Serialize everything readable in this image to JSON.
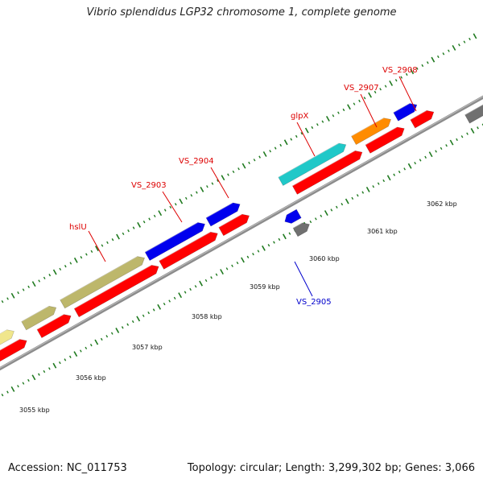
{
  "title": "Vibrio splendidus LGP32 chromosome 1, complete genome",
  "footer": {
    "accession": "Accession: NC_011753",
    "summary": "Topology: circular; Length: 3,299,302 bp; Genes: 3,066"
  },
  "scale": {
    "ticks": [
      "3055 kbp",
      "3056 kbp",
      "3057 kbp",
      "3058 kbp",
      "3059 kbp",
      "3060 kbp",
      "3061 kbp",
      "3062 kbp"
    ]
  },
  "colors": {
    "backbone": "#8c8c8c",
    "tick": "#1f7a1f",
    "cds": "#ff0000",
    "khaki": "#bdb76b",
    "yellow": "#f0e68c",
    "blue": "#0000ee",
    "cyan": "#20c8c8",
    "orange": "#ff8c00",
    "gray": "#707070",
    "label_red": "#dd0000",
    "label_blue": "#0000cc"
  },
  "gene_labels": [
    {
      "id": "hslU",
      "text": "hslU",
      "color": "label_red"
    },
    {
      "id": "vs2903",
      "text": "VS_2903",
      "color": "label_red"
    },
    {
      "id": "vs2904",
      "text": "VS_2904",
      "color": "label_red"
    },
    {
      "id": "glpx",
      "text": "glpX",
      "color": "label_red"
    },
    {
      "id": "vs2907",
      "text": "VS_2907",
      "color": "label_red"
    },
    {
      "id": "vs2908",
      "text": "VS_2908",
      "color": "label_red"
    },
    {
      "id": "vs2905",
      "text": "VS_2905",
      "color": "label_blue"
    }
  ]
}
